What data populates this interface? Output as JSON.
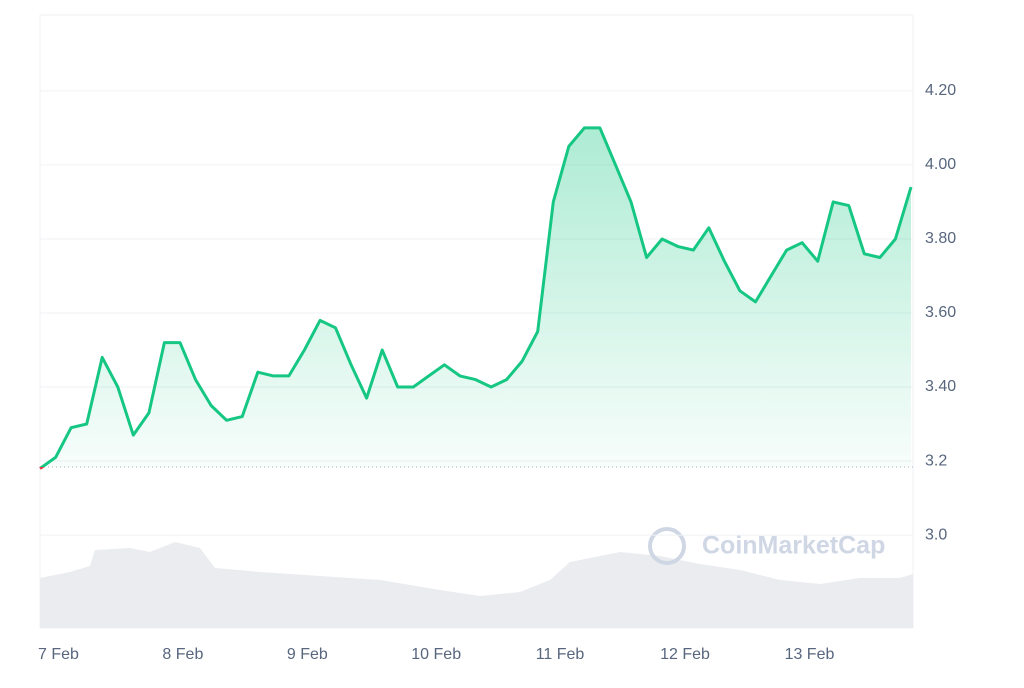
{
  "chart_data": {
    "type": "line",
    "watermark": "CoinMarketCap",
    "categories": [
      "7 Feb",
      null,
      null,
      null,
      null,
      null,
      null,
      null,
      "8 Feb",
      null,
      null,
      null,
      null,
      null,
      null,
      null,
      "9 Feb",
      null,
      null,
      null,
      null,
      null,
      null,
      null,
      "10 Feb",
      null,
      null,
      null,
      null,
      null,
      null,
      null,
      "11 Feb",
      null,
      null,
      null,
      null,
      null,
      null,
      null,
      "12 Feb",
      null,
      null,
      null,
      null,
      null,
      null,
      null,
      "13 Feb",
      null,
      null,
      null,
      null,
      null,
      null,
      null,
      null
    ],
    "values": [
      3.18,
      3.21,
      3.29,
      3.3,
      3.48,
      3.4,
      3.27,
      3.33,
      3.52,
      3.52,
      3.42,
      3.35,
      3.31,
      3.32,
      3.44,
      3.43,
      3.43,
      3.5,
      3.58,
      3.56,
      3.46,
      3.37,
      3.5,
      3.4,
      3.4,
      3.43,
      3.46,
      3.43,
      3.42,
      3.4,
      3.42,
      3.47,
      3.55,
      3.9,
      4.05,
      4.1,
      4.1,
      4.0,
      3.9,
      3.75,
      3.8,
      3.78,
      3.77,
      3.83,
      3.74,
      3.66,
      3.63,
      3.7,
      3.77,
      3.79,
      3.74,
      3.9,
      3.89,
      3.76,
      3.75,
      3.8,
      3.94
    ],
    "color": "#16c784",
    "below_color": "#ea3943",
    "reference_line": 3.184,
    "ylim": [
      2.749,
      4.405
    ],
    "yticks": [
      {
        "value": 3,
        "label": "3.0"
      },
      3.2,
      {
        "value": 3.4,
        "label": "3.40"
      },
      {
        "value": 3.6,
        "label": "3.60"
      },
      {
        "value": 3.8,
        "label": "3.80"
      },
      {
        "value": 4,
        "label": "4.00"
      },
      {
        "value": 4.2,
        "label": "4.20"
      }
    ],
    "grid": true
  }
}
